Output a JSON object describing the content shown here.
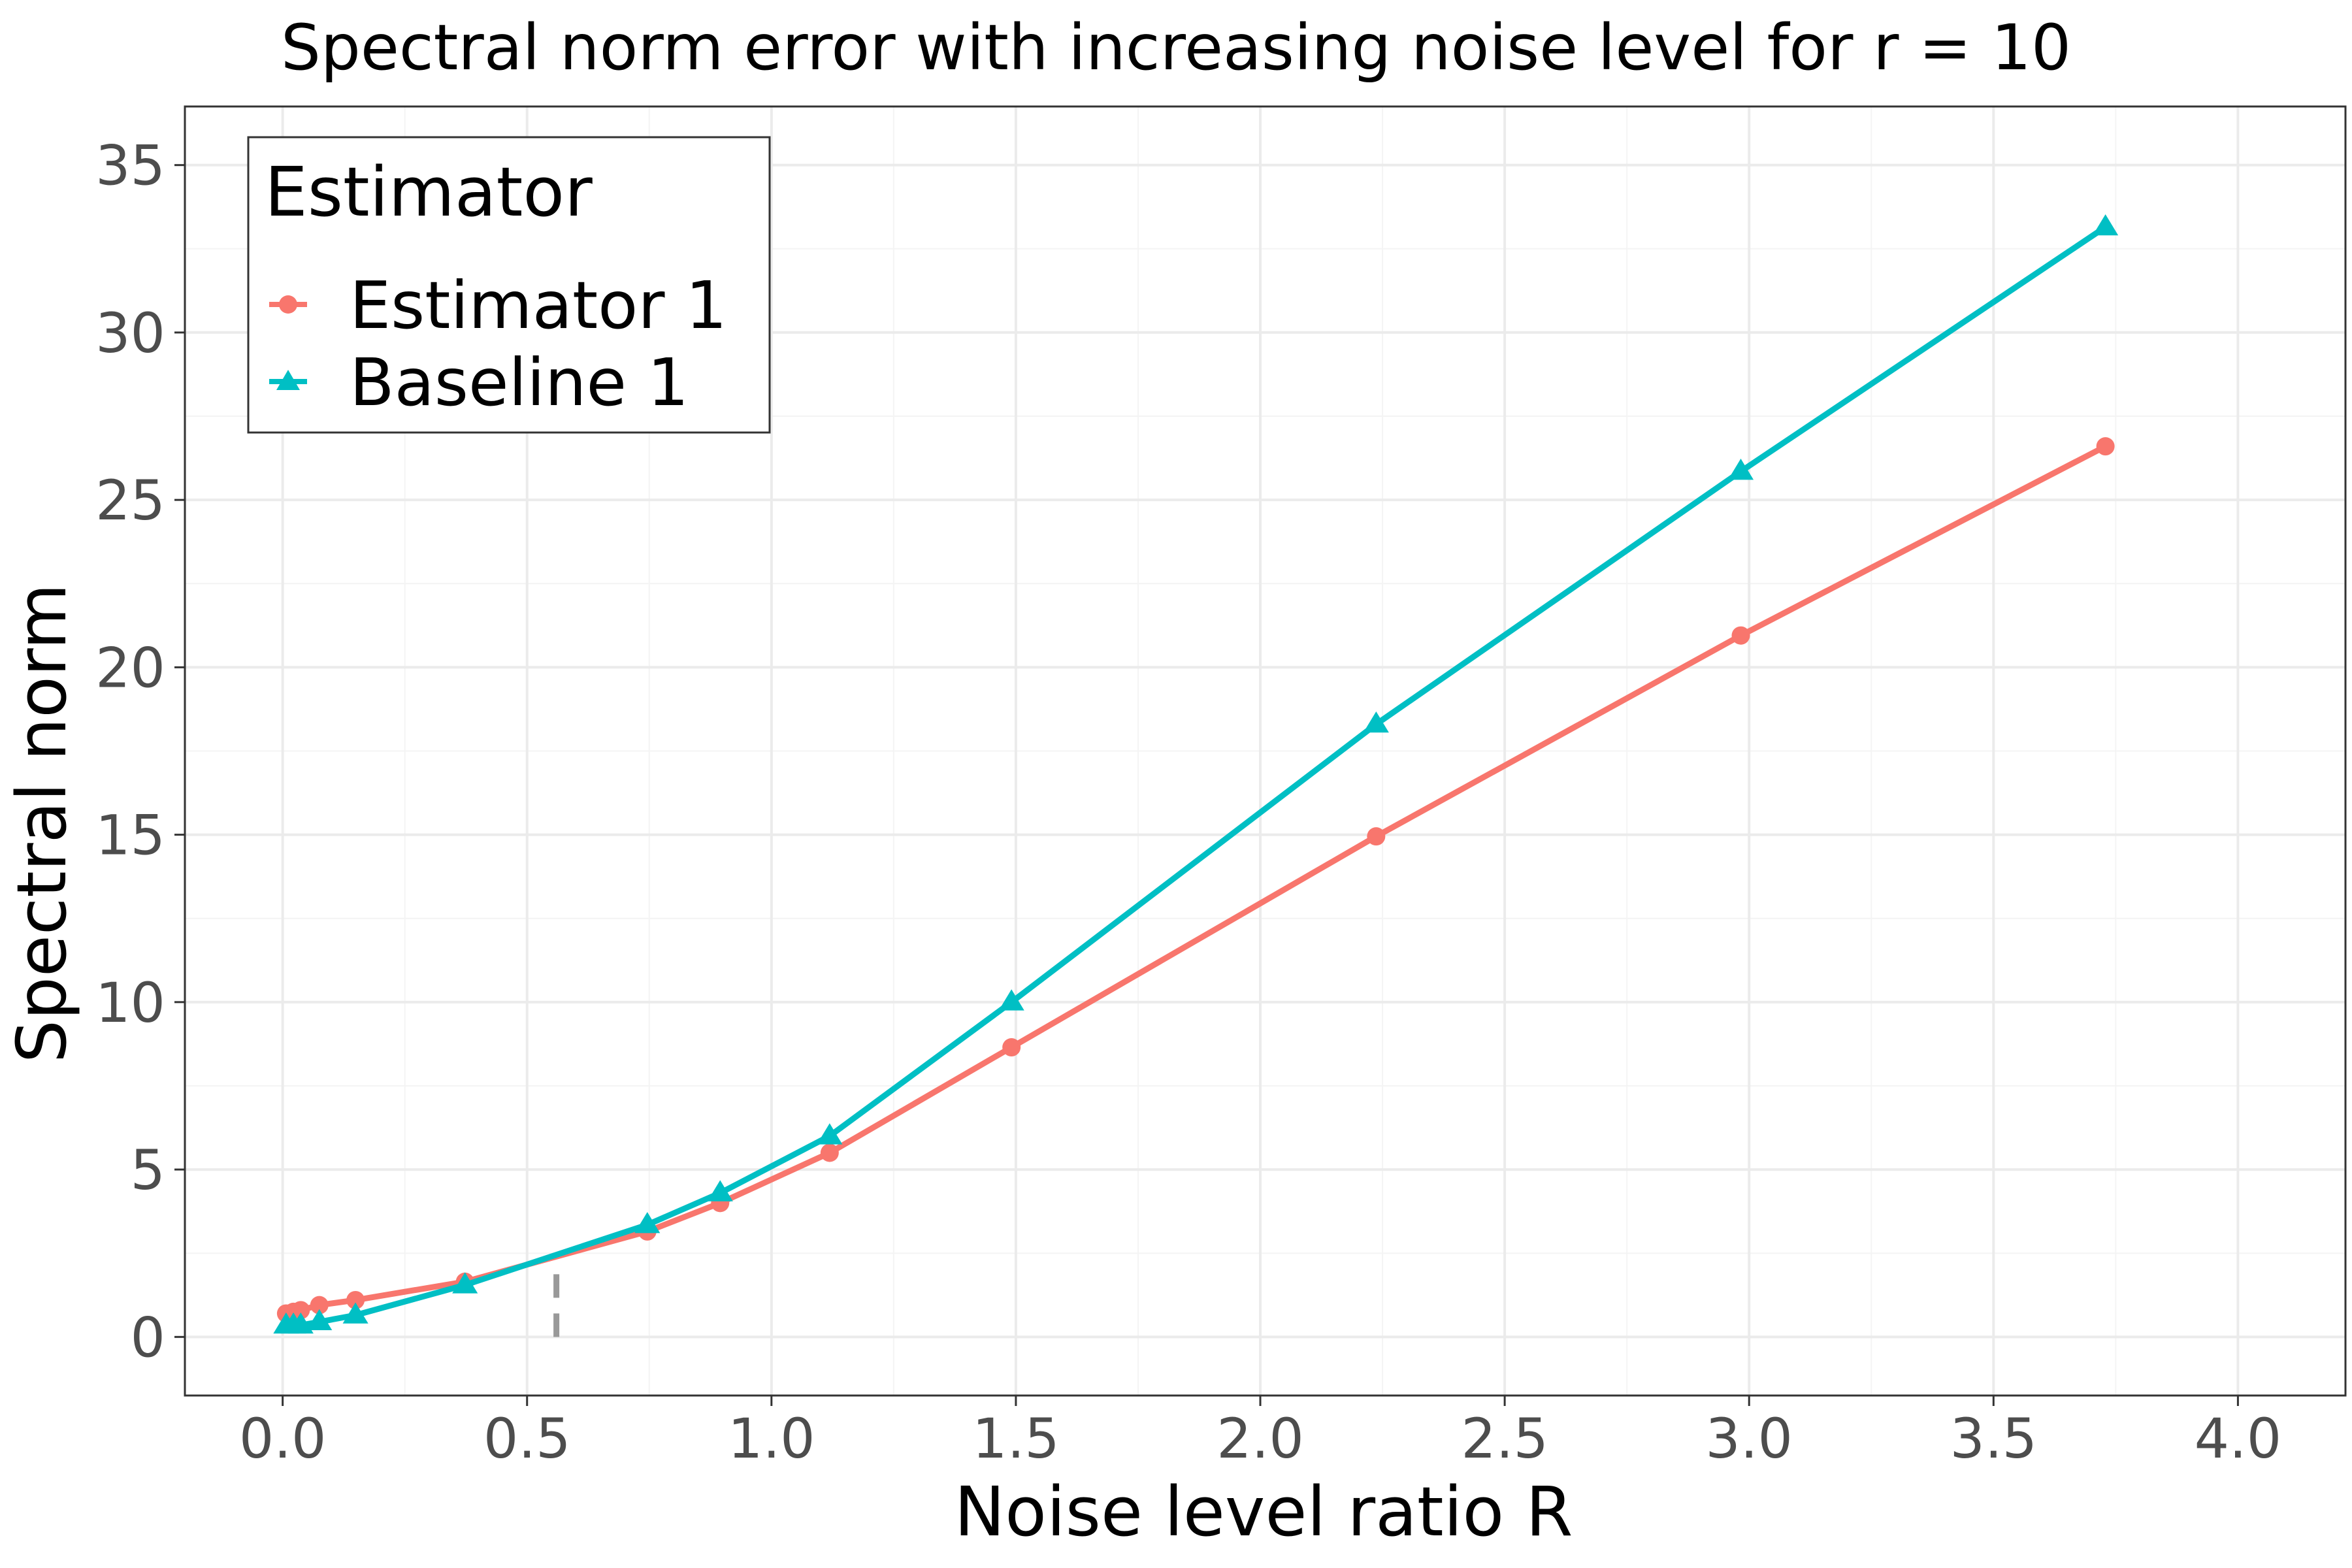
{
  "chart_data": {
    "type": "line",
    "title": "Spectral norm error with increasing noise level for r = 10",
    "xlabel": "Noise level ratio R",
    "ylabel": "Spectral norm",
    "xlim": [
      -0.2,
      4.22
    ],
    "ylim": [
      -1.75,
      36.75
    ],
    "x_ticks": [
      0.0,
      0.5,
      1.0,
      1.5,
      2.0,
      2.5,
      3.0,
      3.5,
      4.0
    ],
    "x_tick_labels": [
      "0.0",
      "0.5",
      "1.0",
      "1.5",
      "2.0",
      "2.5",
      "3.0",
      "3.5",
      "4.0"
    ],
    "y_ticks": [
      0,
      5,
      10,
      15,
      20,
      25,
      30,
      35
    ],
    "y_tick_labels": [
      "0",
      "5",
      "10",
      "15",
      "20",
      "25",
      "30",
      "35"
    ],
    "grid": true,
    "legend": {
      "title": "Estimator",
      "placement": "top-left"
    },
    "reference_line": {
      "x": 0.56,
      "y_from": 0,
      "y_to": 2.5,
      "style": "dashed",
      "color": "#999999"
    },
    "series": [
      {
        "name": "Estimator 1",
        "color": "#F8766D",
        "marker": "circle",
        "x": [
          0.007,
          0.022,
          0.037,
          0.075,
          0.149,
          0.373,
          0.746,
          0.895,
          1.119,
          1.491,
          2.237,
          2.983,
          3.729
        ],
        "y": [
          0.7,
          0.75,
          0.8,
          0.95,
          1.1,
          1.65,
          3.15,
          4.0,
          5.5,
          8.65,
          14.95,
          20.95,
          26.6
        ]
      },
      {
        "name": "Baseline 1",
        "color": "#00BFC4",
        "marker": "triangle",
        "x": [
          0.007,
          0.022,
          0.037,
          0.075,
          0.149,
          0.373,
          0.746,
          0.895,
          1.119,
          1.491,
          2.237,
          2.983,
          3.729
        ],
        "y": [
          0.35,
          0.35,
          0.35,
          0.45,
          0.65,
          1.55,
          3.35,
          4.3,
          6.0,
          10.0,
          18.3,
          25.85,
          33.15
        ]
      }
    ]
  }
}
